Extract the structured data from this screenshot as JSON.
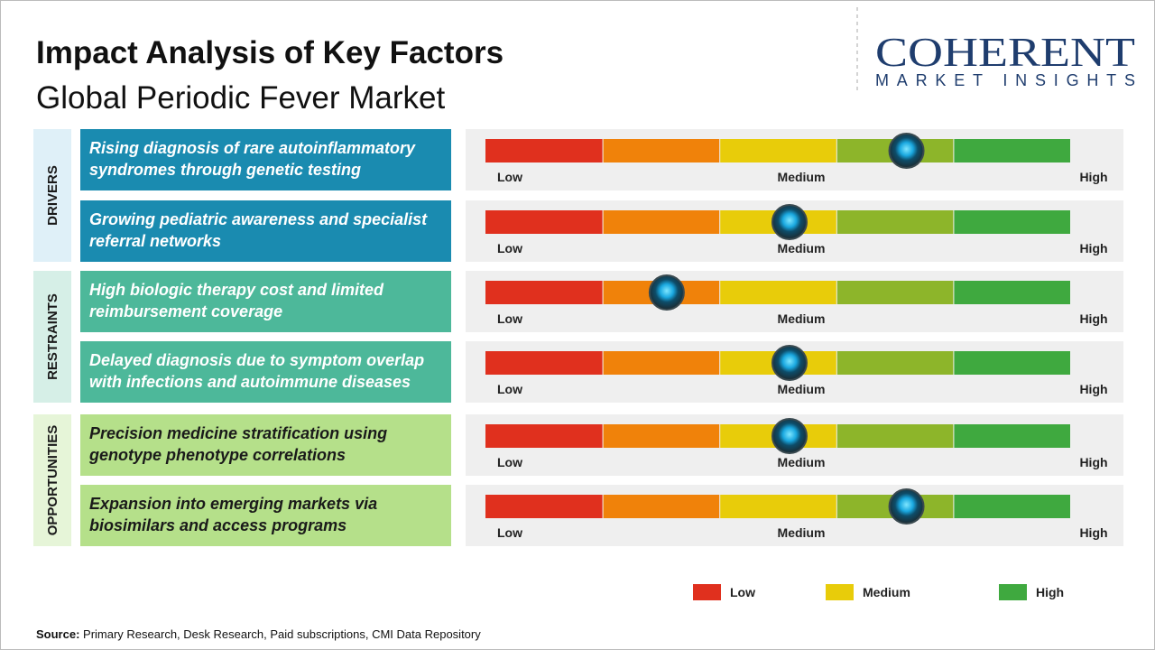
{
  "header": {
    "title": "Impact Analysis of Key Factors",
    "subtitle": "Global Periodic Fever Market"
  },
  "logo": {
    "name": "COHERENT",
    "tagline": "MARKET INSIGHTS"
  },
  "scale": {
    "low": "Low",
    "medium": "Medium",
    "high": "High"
  },
  "groups": [
    {
      "label": "DRIVERS",
      "factors": [
        {
          "text": "Rising diagnosis of rare autoinflammatory syndromes through genetic testing",
          "impact": 72
        },
        {
          "text": "Growing pediatric awareness and specialist referral networks",
          "impact": 52
        }
      ]
    },
    {
      "label": "RESTRAINTS",
      "factors": [
        {
          "text": "High biologic therapy cost and limited reimbursement coverage",
          "impact": 31
        },
        {
          "text": "Delayed diagnosis due to symptom overlap with infections and autoimmune diseases",
          "impact": 52
        }
      ]
    },
    {
      "label": "OPPORTUNITIES",
      "factors": [
        {
          "text": "Precision medicine stratification using genotype phenotype correlations",
          "impact": 52
        },
        {
          "text": "Expansion into emerging markets via biosimilars and access programs",
          "impact": 72
        }
      ]
    }
  ],
  "legend": [
    {
      "label": "Low",
      "color": "#e0301e"
    },
    {
      "label": "Medium",
      "color": "#e8cc0a"
    },
    {
      "label": "High",
      "color": "#3fa93f"
    }
  ],
  "source": {
    "label": "Source:",
    "text": "Primary Research, Desk Research, Paid subscriptions, CMI Data Repository"
  }
}
